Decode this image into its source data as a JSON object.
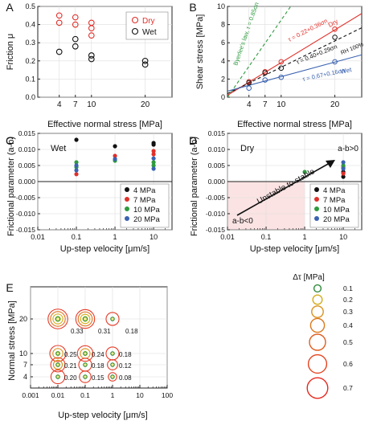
{
  "chart_data": [
    {
      "panel": "A",
      "type": "scatter",
      "xlabel": "Effective normal stress [MPa]",
      "ylabel": "Friction μ",
      "xlim": [
        0,
        25
      ],
      "ylim": [
        0,
        0.5
      ],
      "xticks": [
        4,
        7,
        10,
        20
      ],
      "yticks": [
        0,
        0.1,
        0.2,
        0.3,
        0.4,
        0.5
      ],
      "legend": "top-right",
      "series": [
        {
          "name": "Dry",
          "color": "#e0302a",
          "marker": "open-circle",
          "points": [
            [
              4,
              0.45
            ],
            [
              4,
              0.41
            ],
            [
              7,
              0.44
            ],
            [
              7,
              0.4
            ],
            [
              10,
              0.41
            ],
            [
              10,
              0.38
            ],
            [
              10,
              0.34
            ],
            [
              20,
              0.38
            ],
            [
              20,
              0.37
            ]
          ]
        },
        {
          "name": "Wet",
          "color": "#111111",
          "marker": "open-circle",
          "points": [
            [
              4,
              0.25
            ],
            [
              7,
              0.32
            ],
            [
              7,
              0.28
            ],
            [
              10,
              0.23
            ],
            [
              10,
              0.21
            ],
            [
              20,
              0.2
            ],
            [
              20,
              0.18
            ]
          ]
        }
      ]
    },
    {
      "panel": "B",
      "type": "scatter",
      "xlabel": "Effective normal stress [MPa]",
      "ylabel": "Shear stress [MPa]",
      "xlim": [
        0,
        25
      ],
      "ylim": [
        0,
        10
      ],
      "xticks": [
        4,
        7,
        10,
        20
      ],
      "yticks": [
        0,
        2,
        4,
        6,
        8,
        10
      ],
      "series": [
        {
          "name": "Dry",
          "color": "#e0302a",
          "marker": "open-circle",
          "points": [
            [
              4,
              1.7
            ],
            [
              7,
              2.8
            ],
            [
              10,
              3.9
            ],
            [
              20,
              7.5
            ]
          ]
        },
        {
          "name": "RH 100%",
          "color": "#111111",
          "marker": "open-circle",
          "points": [
            [
              4,
              1.6
            ],
            [
              7,
              2.7
            ],
            [
              10,
              3.2
            ],
            [
              20,
              6.6
            ]
          ]
        },
        {
          "name": "Wet",
          "color": "#3a62b0",
          "marker": "open-circle",
          "points": [
            [
              4,
              1.0
            ],
            [
              7,
              1.9
            ],
            [
              10,
              2.2
            ],
            [
              20,
              3.9
            ]
          ]
        }
      ],
      "lines": [
        {
          "label": "Byerlee's law, τ = 0.85σn",
          "color": "#2e9a3e",
          "dash": true,
          "intercept": 0,
          "slope": 0.85,
          "xmax": 12
        },
        {
          "label": "τ = 0.22+0.36σn",
          "color": "#e0302a",
          "dash": false,
          "intercept": 0.22,
          "slope": 0.36,
          "xmax": 25
        },
        {
          "label": "τ = 0.40+0.29σn",
          "color": "#111111",
          "dash": true,
          "intercept": 0.4,
          "slope": 0.29,
          "xmax": 25
        },
        {
          "label": "τ = 0.67+0.16σn",
          "color": "#3a62b0",
          "dash": false,
          "intercept": 0.67,
          "slope": 0.16,
          "xmax": 25
        }
      ],
      "annotations": {
        "dry": "Dry",
        "rh": "RH 100%",
        "wet": "Wet"
      }
    },
    {
      "panel": "C",
      "type": "scatter",
      "xlabel": "Up-step velocity [μm/s]",
      "ylabel": "Frictional parameter (a-b)",
      "xscale": "log",
      "xlim": [
        0.01,
        30
      ],
      "ylim": [
        -0.015,
        0.015
      ],
      "xtick_labels": [
        "0.01",
        "0.1",
        "1",
        "10"
      ],
      "yticks": [
        -0.015,
        -0.01,
        -0.005,
        0.0,
        0.005,
        0.01,
        0.015
      ],
      "ytick_labels": [
        "-0.015",
        "-0.010",
        "-0.005",
        "0.000",
        "0.005",
        "0.010",
        "0.015"
      ],
      "text": "Wet",
      "legend": "bottom-right",
      "series": [
        {
          "name": "4 MPa",
          "color": "#111111",
          "points": [
            [
              0.1,
              0.013
            ],
            [
              1,
              0.011
            ],
            [
              10,
              0.012
            ],
            [
              10,
              0.0115
            ]
          ]
        },
        {
          "name": "7 MPa",
          "color": "#e0302a",
          "points": [
            [
              0.1,
              0.0023
            ],
            [
              1,
              0.008
            ],
            [
              10,
              0.0095
            ],
            [
              10,
              0.0085
            ]
          ]
        },
        {
          "name": "10 MPa",
          "color": "#2e9a3e",
          "points": [
            [
              0.1,
              0.006
            ],
            [
              0.1,
              0.0045
            ],
            [
              1,
              0.0065
            ],
            [
              10,
              0.006
            ],
            [
              10,
              0.005
            ]
          ]
        },
        {
          "name": "20 MPa",
          "color": "#3a62b0",
          "points": [
            [
              0.1,
              0.005
            ],
            [
              0.1,
              0.0035
            ],
            [
              1,
              0.007
            ],
            [
              10,
              0.0072
            ],
            [
              10,
              0.004
            ]
          ]
        }
      ]
    },
    {
      "panel": "D",
      "type": "scatter",
      "xlabel": "Up-step velocity [μm/s]",
      "ylabel": "Frictional parameter (a-b)",
      "xscale": "log",
      "xlim": [
        0.01,
        30
      ],
      "ylim": [
        -0.015,
        0.015
      ],
      "xtick_labels": [
        "0.01",
        "0.1",
        "1",
        "10"
      ],
      "yticks": [
        -0.015,
        -0.01,
        -0.005,
        0.0,
        0.005,
        0.01,
        0.015
      ],
      "ytick_labels": [
        "-0.015",
        "-0.010",
        "-0.005",
        "0.000",
        "0.005",
        "0.010",
        "0.015"
      ],
      "text": "Dry",
      "region_pos": "a-b>0",
      "region_neg": "a-b<0",
      "arrow_text": "Unstable to stable",
      "legend": "bottom-right",
      "series": [
        {
          "name": "4 MPa",
          "color": "#111111",
          "points": [
            [
              10,
              0.003
            ],
            [
              10,
              0.0015
            ]
          ]
        },
        {
          "name": "7 MPa",
          "color": "#e0302a",
          "points": [
            [
              10,
              0.0045
            ],
            [
              10,
              0.0025
            ]
          ]
        },
        {
          "name": "10 MPa",
          "color": "#2e9a3e",
          "points": [
            [
              1,
              0.003
            ],
            [
              10,
              0.005
            ]
          ]
        },
        {
          "name": "20 MPa",
          "color": "#3a62b0",
          "points": [
            [
              10,
              0.006
            ],
            [
              10,
              0.004
            ]
          ]
        }
      ]
    },
    {
      "panel": "E",
      "type": "bubble",
      "xlabel": "Up-step velocity [μm/s]",
      "ylabel": "Normal stress [MPa]",
      "xscale": "log",
      "xlim": [
        0.001,
        100
      ],
      "xtick_labels": [
        "0.001",
        "0.01",
        "0.1",
        "1",
        "10",
        "100"
      ],
      "yticks": [
        4,
        7,
        10,
        20
      ],
      "size_legend_title": "Δτ [MPa]",
      "size_legend": [
        0.1,
        0.2,
        0.3,
        0.4,
        0.5,
        0.6,
        0.7
      ],
      "points": [
        {
          "x": 0.01,
          "y": 20,
          "dtau": 0.33,
          "label": "0.33"
        },
        {
          "x": 0.1,
          "y": 20,
          "dtau": 0.31,
          "label": "0.31"
        },
        {
          "x": 1,
          "y": 20,
          "dtau": 0.18,
          "label": "0.18"
        },
        {
          "x": 0.01,
          "y": 10,
          "dtau": 0.25,
          "label": "0.25"
        },
        {
          "x": 0.1,
          "y": 10,
          "dtau": 0.24,
          "label": "0.24"
        },
        {
          "x": 1,
          "y": 10,
          "dtau": 0.18,
          "label": "0.18"
        },
        {
          "x": 0.01,
          "y": 7,
          "dtau": 0.21,
          "label": "0.21"
        },
        {
          "x": 0.1,
          "y": 7,
          "dtau": 0.18,
          "label": "0.18"
        },
        {
          "x": 1,
          "y": 7,
          "dtau": 0.12,
          "label": "0.12"
        },
        {
          "x": 0.01,
          "y": 4,
          "dtau": 0.2,
          "label": "0.20"
        },
        {
          "x": 0.1,
          "y": 4,
          "dtau": 0.15,
          "label": "0.15"
        },
        {
          "x": 1,
          "y": 4,
          "dtau": 0.08,
          "label": "0.08"
        }
      ]
    }
  ]
}
